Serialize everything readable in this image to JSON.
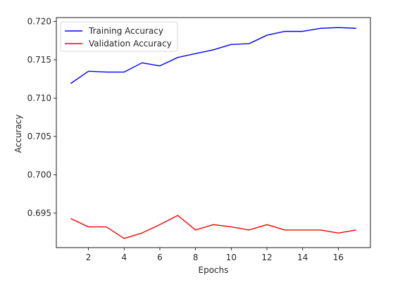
{
  "chart_data": {
    "type": "line",
    "title": "",
    "xlabel": "Epochs",
    "ylabel": "Accuracy",
    "xlim": [
      0.2,
      17.8
    ],
    "ylim": [
      0.6905,
      0.7205
    ],
    "xticks": [
      2,
      4,
      6,
      8,
      10,
      12,
      14,
      16
    ],
    "yticks": [
      0.695,
      0.7,
      0.705,
      0.71,
      0.715,
      0.72
    ],
    "ytick_labels": [
      "0.695",
      "0.700",
      "0.705",
      "0.710",
      "0.715",
      "0.720"
    ],
    "grid": false,
    "legend_position": "top-left",
    "x": [
      1,
      2,
      3,
      4,
      5,
      6,
      7,
      8,
      9,
      10,
      11,
      12,
      13,
      14,
      15,
      16,
      17
    ],
    "series": [
      {
        "name": "Training Accuracy",
        "color": "#0000ff",
        "values": [
          0.7119,
          0.7135,
          0.7134,
          0.7134,
          0.7146,
          0.7142,
          0.7153,
          0.7158,
          0.7163,
          0.717,
          0.7171,
          0.7182,
          0.7187,
          0.7187,
          0.7191,
          0.7192,
          0.7191
        ]
      },
      {
        "name": "Validation Accuracy",
        "color": "#ff0000",
        "values": [
          0.6943,
          0.6932,
          0.6932,
          0.6917,
          0.6924,
          0.6935,
          0.6947,
          0.6928,
          0.6935,
          0.6932,
          0.6928,
          0.6935,
          0.6928,
          0.6928,
          0.6928,
          0.6924,
          0.6928
        ]
      }
    ]
  }
}
